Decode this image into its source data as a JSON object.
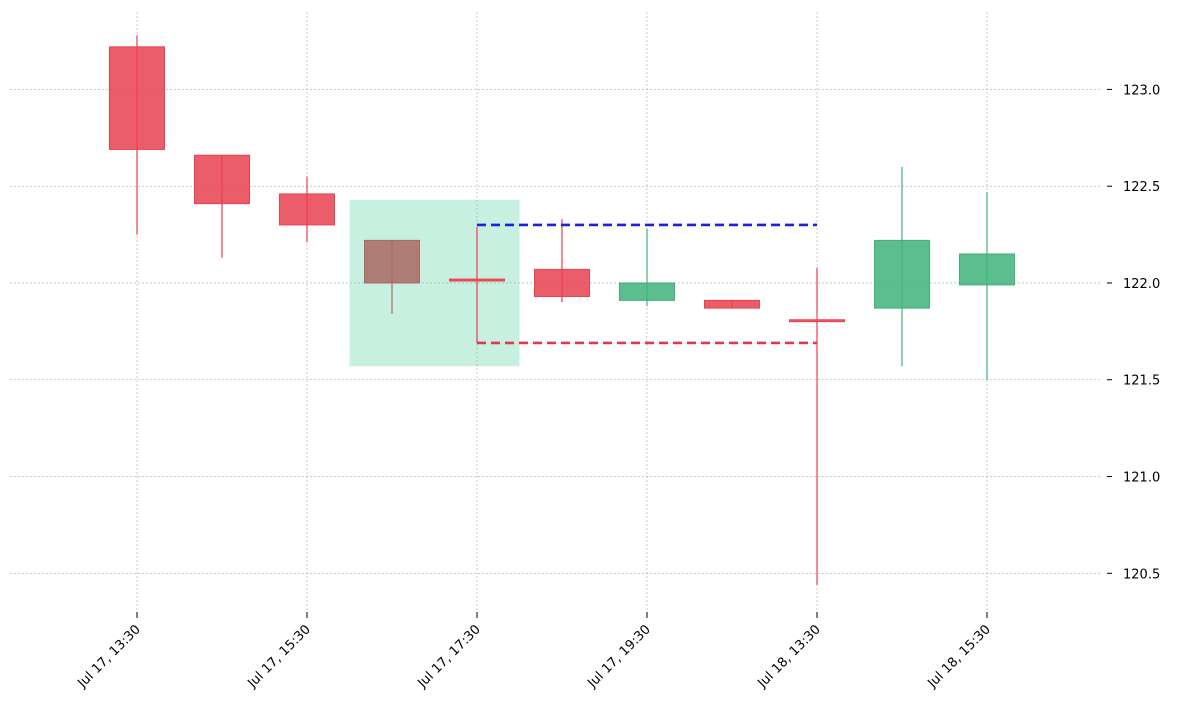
{
  "chart_data": {
    "type": "candlestick",
    "x_tick_labels": [
      "Jul 17, 13:30",
      "Jul 17, 15:30",
      "Jul 17, 17:30",
      "Jul 17, 19:30",
      "Jul 18, 13:30",
      "Jul 18, 15:30"
    ],
    "y_ticks": [
      120.5,
      121.0,
      121.5,
      122.0,
      122.5,
      123.0
    ],
    "y_tick_labels": [
      "120.5",
      "121.0",
      "121.5",
      "122.0",
      "122.5",
      "123.0"
    ],
    "ylim": [
      120.3,
      123.4
    ],
    "grid": true,
    "candles": [
      {
        "open": 123.22,
        "high": 123.28,
        "low": 122.25,
        "close": 122.69
      },
      {
        "open": 122.66,
        "high": 122.66,
        "low": 122.13,
        "close": 122.41
      },
      {
        "open": 122.46,
        "high": 122.55,
        "low": 122.21,
        "close": 122.3
      },
      {
        "open": 122.22,
        "high": 122.22,
        "low": 121.84,
        "close": 122.0
      },
      {
        "open": 122.02,
        "high": 122.29,
        "low": 121.69,
        "close": 122.01
      },
      {
        "open": 122.07,
        "high": 122.33,
        "low": 121.9,
        "close": 121.93
      },
      {
        "open": 121.91,
        "high": 122.28,
        "low": 121.88,
        "close": 122.0
      },
      {
        "open": 121.91,
        "high": 121.91,
        "low": 121.87,
        "close": 121.87
      },
      {
        "open": 121.81,
        "high": 122.08,
        "low": 120.44,
        "close": 121.8
      },
      {
        "open": 121.87,
        "high": 122.6,
        "low": 121.57,
        "close": 122.22
      },
      {
        "open": 121.99,
        "high": 122.47,
        "low": 121.5,
        "close": 122.15
      }
    ],
    "highlight_zone": {
      "from_index": 2.5,
      "to_index": 4.5,
      "low": 121.57,
      "high": 122.43
    },
    "levels": [
      {
        "value": 122.3,
        "from_index": 4,
        "to_index": 8,
        "style": "dashed"
      },
      {
        "value": 121.69,
        "from_index": 4,
        "to_index": 8,
        "style": "dashed"
      }
    ],
    "colors": {
      "up": "#3fb37a",
      "down": "#e8414f",
      "highlight_candle": "#a96a63",
      "zone": "#c8f0e0",
      "level_high": "#1f1fe0",
      "level_low": "#e03a48",
      "grid": "#aaaaaa"
    }
  }
}
